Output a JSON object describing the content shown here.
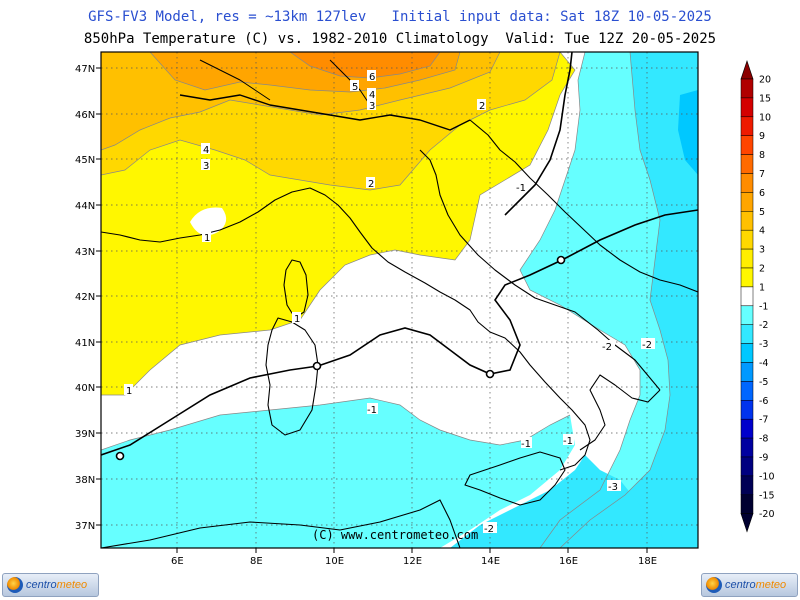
{
  "header": {
    "line1": "GFS-FV3 Model, res = ~13km 127lev   Initial input data: Sat 18Z 10-05-2025",
    "line2": "850hPa Temperature (C) vs. 1982-2010 Climatology  Valid: Tue 12Z 20-05-2025"
  },
  "map": {
    "variable": "850hPa temperature anomaly",
    "unit": "C",
    "lon_range": [
      4.0,
      19.2
    ],
    "lat_range": [
      36.6,
      47.3
    ],
    "lon_ticks": [
      "6E",
      "8E",
      "10E",
      "12E",
      "14E",
      "16E",
      "18E"
    ],
    "lat_ticks": [
      "37N",
      "38N",
      "39N",
      "40N",
      "41N",
      "42N",
      "43N",
      "44N",
      "45N",
      "46N",
      "47N"
    ],
    "grid": true,
    "contour_labels": [
      "6",
      "5",
      "4",
      "3",
      "2",
      "4",
      "3",
      "2",
      "-1",
      "1",
      "1",
      "1",
      "-1",
      "-2",
      "-2",
      "-1",
      "-1",
      "-3",
      "-2"
    ]
  },
  "colorbar": {
    "levels": [
      "20",
      "15",
      "10",
      "9",
      "8",
      "7",
      "6",
      "5",
      "4",
      "3",
      "2",
      "1",
      "-1",
      "-2",
      "-3",
      "-4",
      "-5",
      "-6",
      "-7",
      "-8",
      "-9",
      "-10",
      "-15",
      "-20"
    ],
    "colors": [
      "#8b0000",
      "#b00000",
      "#d40000",
      "#ee1a00",
      "#ff4500",
      "#ff6a00",
      "#ff8c00",
      "#ffa500",
      "#ffc000",
      "#ffd800",
      "#ffee00",
      "#fff700",
      "#ffffff",
      "#66ffff",
      "#33e8ff",
      "#00c8ff",
      "#0099ff",
      "#0066ff",
      "#0033ee",
      "#0000cc",
      "#0000a0",
      "#000080",
      "#000055",
      "#000030"
    ]
  },
  "footer": {
    "copyright": "(C) www.centrometeo.com",
    "logo_left": {
      "part1": "centro",
      "part2": "meteo"
    },
    "logo_right": {
      "part1": "centro",
      "part2": "meteo"
    }
  }
}
